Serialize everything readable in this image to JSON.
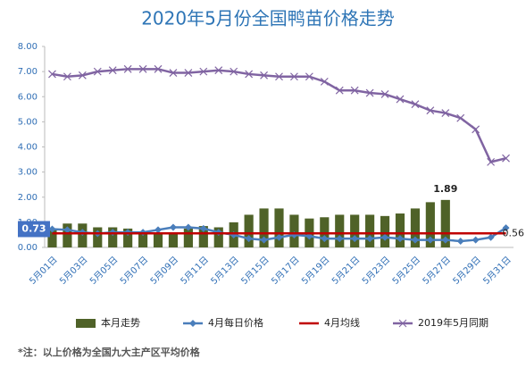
{
  "chart_data": {
    "type": "combo",
    "title": "2020年5月份全国鸭苗价格走势",
    "categories": [
      "5月01日",
      null,
      "5月03日",
      null,
      "5月05日",
      null,
      "5月07日",
      null,
      "5月09日",
      null,
      "5月11日",
      null,
      "5月13日",
      null,
      "5月15日",
      null,
      "5月17日",
      null,
      "5月19日",
      null,
      "5月21日",
      null,
      "5月23日",
      null,
      "5月25日",
      null,
      "5月27日",
      null,
      "5月29日",
      null,
      "5月31日"
    ],
    "series": [
      {
        "name": "本月走势",
        "kind": "bar",
        "color": "#4f6228",
        "values": [
          0.75,
          0.95,
          0.95,
          0.8,
          0.8,
          0.75,
          0.6,
          0.6,
          0.6,
          0.75,
          0.85,
          0.8,
          1.0,
          1.3,
          1.55,
          1.55,
          1.3,
          1.15,
          1.2,
          1.3,
          1.3,
          1.3,
          1.25,
          1.35,
          1.55,
          1.8,
          1.89,
          null,
          null,
          null,
          null
        ]
      },
      {
        "name": "4月每日价格",
        "kind": "line",
        "marker": "diamond",
        "color": "#4a7ebb",
        "values": [
          0.73,
          0.7,
          0.6,
          0.55,
          0.6,
          0.6,
          0.6,
          0.7,
          0.8,
          0.8,
          0.75,
          0.6,
          0.5,
          0.35,
          0.3,
          0.4,
          0.5,
          0.45,
          0.35,
          0.35,
          0.35,
          0.35,
          0.4,
          0.35,
          0.3,
          0.3,
          0.3,
          0.25,
          0.3,
          0.4,
          0.78
        ]
      },
      {
        "name": "4月均线",
        "kind": "line",
        "marker": "none",
        "color": "#c00000",
        "values": [
          0.56,
          0.56,
          0.56,
          0.56,
          0.56,
          0.56,
          0.56,
          0.56,
          0.56,
          0.56,
          0.56,
          0.56,
          0.56,
          0.56,
          0.56,
          0.56,
          0.56,
          0.56,
          0.56,
          0.56,
          0.56,
          0.56,
          0.56,
          0.56,
          0.56,
          0.56,
          0.56,
          0.56,
          0.56,
          0.56,
          0.56
        ]
      },
      {
        "name": "2019年5月同期",
        "kind": "line",
        "marker": "x",
        "color": "#8064a2",
        "values": [
          6.9,
          6.8,
          6.85,
          7.0,
          7.05,
          7.1,
          7.1,
          7.1,
          6.95,
          6.95,
          7.0,
          7.05,
          7.0,
          6.9,
          6.85,
          6.8,
          6.8,
          6.8,
          6.6,
          6.25,
          6.25,
          6.15,
          6.1,
          5.9,
          5.7,
          5.45,
          5.35,
          5.15,
          4.7,
          3.4,
          3.55
        ]
      }
    ],
    "ylim": [
      0,
      8
    ],
    "yticks": [
      {
        "value": 0,
        "label": "0.00"
      },
      {
        "value": 1,
        "label": "1.00"
      },
      {
        "value": 2,
        "label": "2.00"
      },
      {
        "value": 3,
        "label": "3.00"
      },
      {
        "value": 4,
        "label": "4.00"
      },
      {
        "value": 5,
        "label": "5.00"
      },
      {
        "value": 6,
        "label": "6.00"
      },
      {
        "value": 7,
        "label": "7.00"
      },
      {
        "value": 8,
        "label": "8.00"
      }
    ],
    "grid": false,
    "legend": "bottom",
    "note": "*注：以上价格为全国九大主产区平均价格"
  }
}
